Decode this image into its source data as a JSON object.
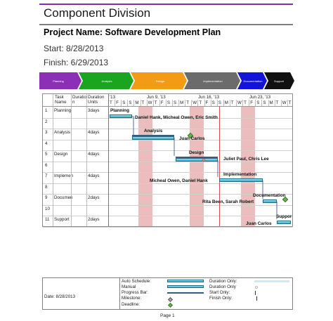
{
  "doc": {
    "title": "Component Division",
    "project_label": "Project Name: Software Development Plan",
    "start": "Start: 8/28/2013",
    "finish": "Finish: 6/29/2013"
  },
  "phases": [
    {
      "label": "Planning",
      "color": "#8a2fb6"
    },
    {
      "label": "Analysis",
      "color": "#19a51e"
    },
    {
      "label": "Design",
      "color": "#f39a16"
    },
    {
      "label": "Implementation",
      "color": "#6b6b6b"
    },
    {
      "label": "Documentation",
      "color": "#1414d8"
    },
    {
      "label": "Support",
      "color": "#111111"
    }
  ],
  "table": {
    "headers": {
      "col_task": "Task",
      "col_task2": "Name",
      "col_dur": "Duratio",
      "col_dur2": "n",
      "col_units": "Duration",
      "col_units2": "Units"
    },
    "rows": [
      {
        "id": "1",
        "name": "Planning",
        "dur": "3days"
      },
      {
        "id": "2",
        "name": "",
        "dur": ""
      },
      {
        "id": "3",
        "name": "Analysis",
        "dur": "4days"
      },
      {
        "id": "4",
        "name": "",
        "dur": ""
      },
      {
        "id": "5",
        "name": "Design",
        "dur": "4days"
      },
      {
        "id": "6",
        "name": "",
        "dur": ""
      },
      {
        "id": "7",
        "name": "Implemen",
        "dur": "4days"
      },
      {
        "id": "8",
        "name": "",
        "dur": ""
      },
      {
        "id": "9",
        "name": "Documen",
        "dur": "2days"
      },
      {
        "id": "10",
        "name": "",
        "dur": ""
      },
      {
        "id": "11",
        "name": "Support",
        "dur": "2days"
      }
    ]
  },
  "timeline": {
    "weeks": [
      "'13",
      "Jun 9, '13",
      "Jun 16, '13",
      "Jun 23, '13"
    ],
    "days": [
      "T",
      "F",
      "S",
      "S",
      "M",
      "T",
      "W",
      "T",
      "F",
      "S",
      "S",
      "M",
      "T",
      "W",
      "T",
      "F",
      "S",
      "S",
      "M",
      "T",
      "W",
      "T",
      "F",
      "S",
      "S",
      "M",
      "T",
      "W",
      "T"
    ]
  },
  "gantt": {
    "labels": {
      "planning": "Planning",
      "planning_res": "Daniel Hank, Micheal Owen, Eric Smith",
      "analysis": "Analysis",
      "analysis_res": "Juan Carlos",
      "design": "Design",
      "design_res": "Juliet Paul, Chris Lee",
      "implementation": "Implementation",
      "implementation_res": "Micheal Owen, Daniel Hank",
      "documentation": "Documentation",
      "documentation_res": "Rita Been, Sarah Robert",
      "support": "Suppor",
      "support_res": "Juan Carlos"
    }
  },
  "footer": {
    "date": "Date: 8/28/2013",
    "legend": {
      "auto_schedule": "Auto Schedule:",
      "manual": "Manual",
      "progress_bar": "Progress Bar:",
      "milestone": "Milestone:",
      "deadline": "Deadline:",
      "duration_only": "Duration Only:",
      "duration_only2": "Duration Only",
      "start_only": "Start Only:",
      "finish_only": "Finish Only:"
    },
    "page": "Page 1"
  }
}
